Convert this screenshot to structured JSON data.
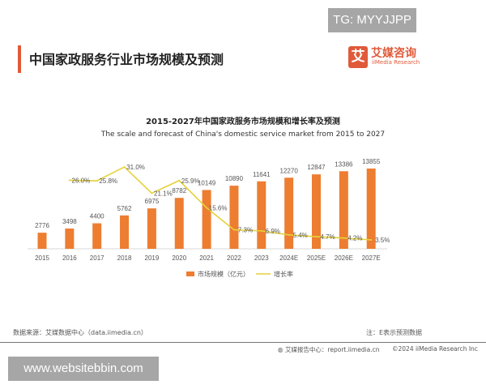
{
  "watermark_top": "TG: MYYJJPP",
  "watermark_bottom": "www.websitebbin.com",
  "header": {
    "title": "中国家政服务行业市场规模及预测"
  },
  "logo": {
    "mark": "艾",
    "cn": "艾媒咨询",
    "en": "iiMedia Research"
  },
  "footer": {
    "source": "数据来源：艾媒数据中心（data.iimedia.cn）",
    "note": "注：E表示预测数据",
    "report": "艾媒报告中心：report.iimedia.cn",
    "copyright": "©2024  iiMedia Research  Inc"
  },
  "colors": {
    "bar": "#ED7D31",
    "line": "#E6D13A",
    "accent": "#E05A3A"
  },
  "chart_data": {
    "type": "bar+line",
    "title": "2015-2027年中国家政服务市场规模和增长率及预测",
    "subtitle": "The scale and forecast of China's domestic service market from 2015 to 2027",
    "categories": [
      "2015",
      "2016",
      "2017",
      "2018",
      "2019",
      "2020",
      "2021",
      "2022",
      "2023",
      "2024E",
      "2025E",
      "2026E",
      "2027E"
    ],
    "series": [
      {
        "name": "市场规模（亿元）",
        "type": "bar",
        "values": [
          2776,
          3498,
          4400,
          5762,
          6975,
          8782,
          10149,
          10890,
          11641,
          12270,
          12847,
          13386,
          13855
        ]
      },
      {
        "name": "增长率",
        "type": "line",
        "values": [
          null,
          26.0,
          25.8,
          31.0,
          21.1,
          25.9,
          15.6,
          7.3,
          6.9,
          5.4,
          4.7,
          4.2,
          3.5
        ],
        "labels": [
          "",
          "26.0%",
          "25.8%",
          "31.0%",
          "21.1%",
          "25.9%",
          "15.6%",
          "7.3%",
          "6.9%",
          "5.4%",
          "4.7%",
          "4.2%",
          "3.5%"
        ]
      }
    ],
    "legend": "bottom",
    "grid": false
  }
}
